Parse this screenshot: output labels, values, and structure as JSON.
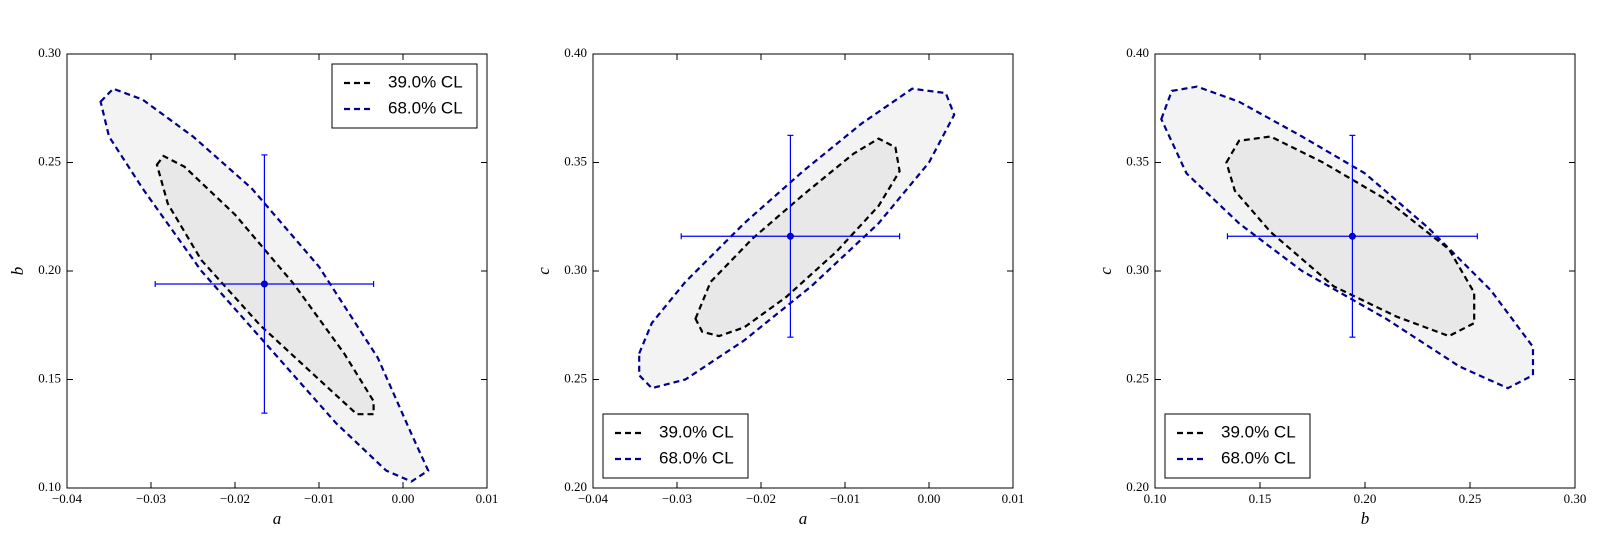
{
  "chart_data": [
    {
      "type": "contour",
      "xlabel": "a",
      "ylabel": "b",
      "xlim": [
        -0.04,
        0.01
      ],
      "ylim": [
        0.1,
        0.3
      ],
      "xticks": [
        {
          "value": -0.04,
          "label": "−0.04"
        },
        {
          "value": -0.03,
          "label": "−0.03"
        },
        {
          "value": -0.02,
          "label": "−0.02"
        },
        {
          "value": -0.01,
          "label": "−0.01"
        },
        {
          "value": 0,
          "label": "0.00"
        },
        0.01
      ],
      "yticks": [
        {
          "value": 0.1,
          "label": "0.10"
        },
        0.15,
        {
          "value": 0.2,
          "label": "0.20"
        },
        0.25,
        {
          "value": 0.3,
          "label": "0.30"
        }
      ],
      "legend": "upper right",
      "series": [
        {
          "name": "39.0% CL",
          "color": "#000000",
          "fill": "#e8e8e8",
          "x": [
            -0.0293,
            -0.0285,
            -0.026,
            -0.02,
            -0.013,
            -0.007,
            -0.0035,
            -0.0035,
            -0.0055,
            -0.01,
            -0.017,
            -0.024,
            -0.028
          ],
          "y": [
            0.249,
            0.253,
            0.248,
            0.226,
            0.194,
            0.162,
            0.14,
            0.134,
            0.134,
            0.15,
            0.175,
            0.205,
            0.231
          ]
        },
        {
          "name": "68.0% CL",
          "color": "#00008b",
          "fill": "#f3f3f3",
          "x": [
            -0.036,
            -0.0345,
            -0.031,
            -0.025,
            -0.018,
            -0.01,
            -0.003,
            0.001,
            0.003,
            0.001,
            -0.002,
            -0.008,
            -0.016,
            -0.024,
            -0.031,
            -0.035
          ],
          "y": [
            0.278,
            0.284,
            0.279,
            0.262,
            0.238,
            0.202,
            0.16,
            0.125,
            0.108,
            0.103,
            0.108,
            0.13,
            0.165,
            0.2,
            0.238,
            0.262
          ]
        }
      ],
      "point": {
        "x": -0.0165,
        "y": 0.194,
        "xerr": 0.013,
        "yerr": 0.0595,
        "color": "#0000ff"
      }
    },
    {
      "type": "contour",
      "xlabel": "a",
      "ylabel": "c",
      "xlim": [
        -0.04,
        0.01
      ],
      "ylim": [
        0.2,
        0.4
      ],
      "xticks": [
        {
          "value": -0.04,
          "label": "−0.04"
        },
        {
          "value": -0.03,
          "label": "−0.03"
        },
        {
          "value": -0.02,
          "label": "−0.02"
        },
        {
          "value": -0.01,
          "label": "−0.01"
        },
        {
          "value": 0,
          "label": "0.00"
        },
        0.01
      ],
      "yticks": [
        {
          "value": 0.2,
          "label": "0.20"
        },
        0.25,
        {
          "value": 0.3,
          "label": "0.30"
        },
        0.35,
        {
          "value": 0.4,
          "label": "0.40"
        }
      ],
      "legend": "lower left",
      "series": [
        {
          "name": "39.0% CL",
          "color": "#000000",
          "fill": "#e8e8e8",
          "x": [
            -0.0278,
            -0.026,
            -0.021,
            -0.015,
            -0.009,
            -0.006,
            -0.004,
            -0.0035,
            -0.006,
            -0.011,
            -0.017,
            -0.022,
            -0.025,
            -0.027
          ],
          "y": [
            0.278,
            0.295,
            0.315,
            0.335,
            0.354,
            0.361,
            0.357,
            0.346,
            0.33,
            0.309,
            0.288,
            0.274,
            0.27,
            0.272
          ]
        },
        {
          "name": "68.0% CL",
          "color": "#00008b",
          "fill": "#f3f3f3",
          "x": [
            -0.0345,
            -0.033,
            -0.029,
            -0.022,
            -0.015,
            -0.008,
            -0.002,
            0.002,
            0.003,
            0,
            -0.006,
            -0.014,
            -0.022,
            -0.029,
            -0.033,
            -0.0345
          ],
          "y": [
            0.262,
            0.276,
            0.295,
            0.322,
            0.346,
            0.368,
            0.384,
            0.382,
            0.372,
            0.35,
            0.322,
            0.293,
            0.268,
            0.25,
            0.246,
            0.252
          ]
        }
      ],
      "point": {
        "x": -0.0165,
        "y": 0.316,
        "xerr": 0.013,
        "yerr": 0.0465,
        "color": "#0000ff"
      }
    },
    {
      "type": "contour",
      "xlabel": "b",
      "ylabel": "c",
      "xlim": [
        0.1,
        0.3
      ],
      "ylim": [
        0.2,
        0.4
      ],
      "xticks": [
        {
          "value": 0.1,
          "label": "0.10"
        },
        0.15,
        {
          "value": 0.2,
          "label": "0.20"
        },
        0.25,
        {
          "value": 0.3,
          "label": "0.30"
        }
      ],
      "yticks": [
        {
          "value": 0.2,
          "label": "0.20"
        },
        0.25,
        {
          "value": 0.3,
          "label": "0.30"
        },
        0.35,
        {
          "value": 0.4,
          "label": "0.40"
        }
      ],
      "legend": "lower left",
      "series": [
        {
          "name": "39.0% CL",
          "color": "#000000",
          "fill": "#e8e8e8",
          "x": [
            0.134,
            0.14,
            0.155,
            0.18,
            0.21,
            0.24,
            0.252,
            0.252,
            0.24,
            0.215,
            0.185,
            0.155,
            0.138
          ],
          "y": [
            0.35,
            0.36,
            0.362,
            0.35,
            0.333,
            0.31,
            0.29,
            0.276,
            0.27,
            0.279,
            0.293,
            0.318,
            0.337
          ]
        },
        {
          "name": "68.0% CL",
          "color": "#00008b",
          "fill": "#f3f3f3",
          "x": [
            0.103,
            0.108,
            0.12,
            0.14,
            0.17,
            0.2,
            0.23,
            0.26,
            0.28,
            0.28,
            0.268,
            0.245,
            0.21,
            0.17,
            0.14,
            0.115
          ],
          "y": [
            0.37,
            0.383,
            0.385,
            0.378,
            0.362,
            0.345,
            0.32,
            0.291,
            0.265,
            0.252,
            0.246,
            0.256,
            0.278,
            0.3,
            0.322,
            0.345
          ]
        }
      ],
      "point": {
        "x": 0.194,
        "y": 0.316,
        "xerr": 0.0595,
        "yerr": 0.0465,
        "color": "#0000ff"
      }
    }
  ]
}
